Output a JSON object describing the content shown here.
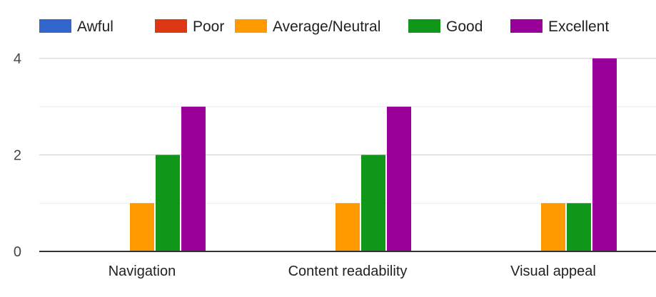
{
  "chart_data": {
    "type": "bar",
    "title": "",
    "xlabel": "",
    "ylabel": "",
    "categories": [
      "Navigation",
      "Content readability",
      "Visual appeal"
    ],
    "series": [
      {
        "name": "Awful",
        "color": "#3366cc",
        "values": [
          0,
          0,
          0
        ]
      },
      {
        "name": "Poor",
        "color": "#dc3912",
        "values": [
          0,
          0,
          0
        ]
      },
      {
        "name": "Average/Neutral",
        "color": "#ff9900",
        "values": [
          1,
          1,
          1
        ]
      },
      {
        "name": "Good",
        "color": "#109618",
        "values": [
          2,
          2,
          1
        ]
      },
      {
        "name": "Excellent",
        "color": "#990099",
        "values": [
          3,
          3,
          4
        ]
      }
    ],
    "ylim": [
      0,
      4
    ],
    "y_ticks": [
      0,
      2,
      4
    ],
    "grid": true,
    "legend_position": "top"
  }
}
